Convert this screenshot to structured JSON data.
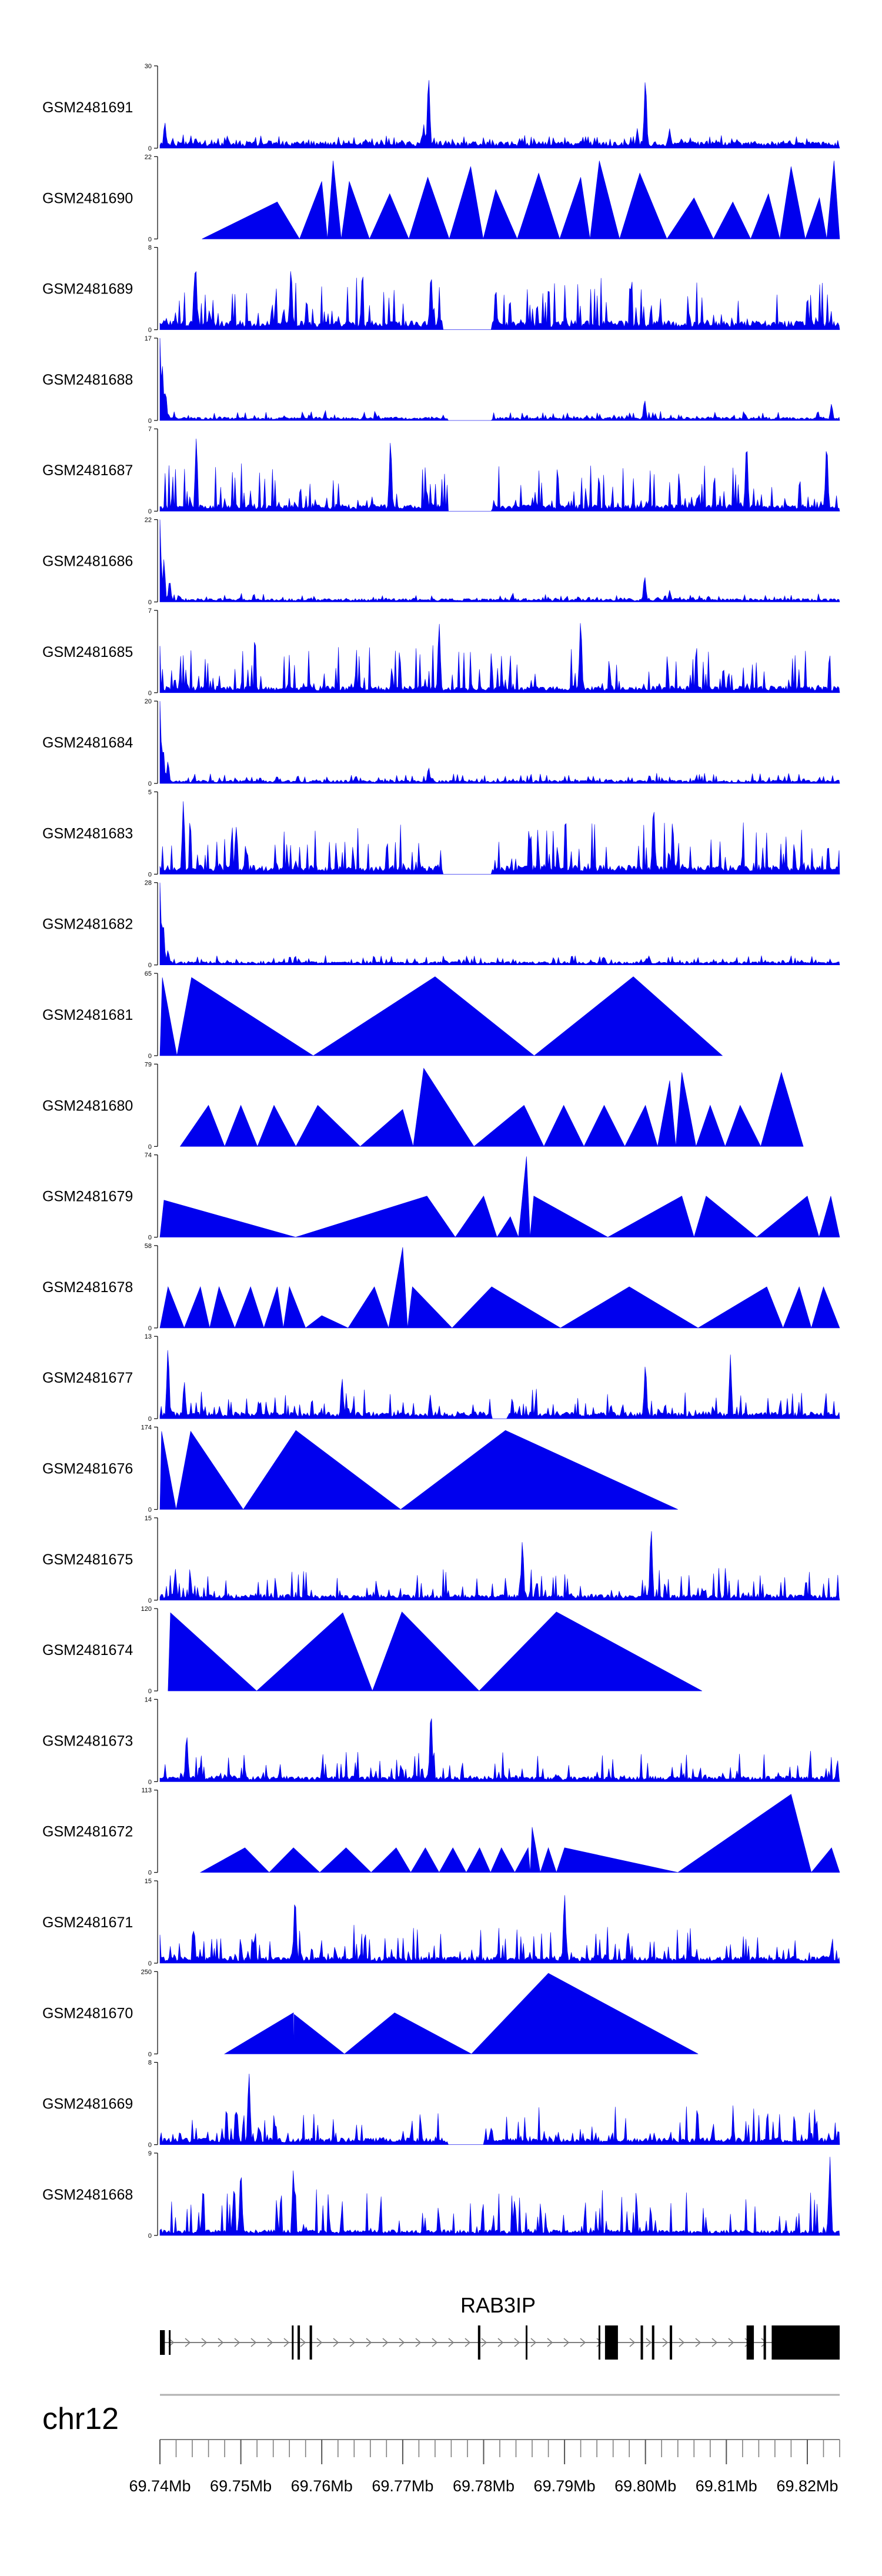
{
  "chart_data": {
    "type": "area",
    "chromosome": "chr12",
    "gene": {
      "name": "RAB3IP",
      "strand": "+",
      "start_mb": 69.74,
      "end_mb": 69.824,
      "exons_mb": [
        [
          69.74,
          69.7406
        ],
        [
          69.7411,
          69.7413
        ],
        [
          69.7563,
          69.7565
        ],
        [
          69.757,
          69.7573
        ],
        [
          69.7585,
          69.7588
        ],
        [
          69.7793,
          69.7796
        ],
        [
          69.7852,
          69.7854
        ],
        [
          69.7942,
          69.7944
        ],
        [
          69.795,
          69.7966
        ],
        [
          69.7994,
          69.7997
        ],
        [
          69.8008,
          69.8011
        ],
        [
          69.803,
          69.8033
        ],
        [
          69.8125,
          69.8134
        ],
        [
          69.8146,
          69.8149
        ],
        [
          69.8156,
          69.824
        ]
      ]
    },
    "xlim": [
      69.74,
      69.824
    ],
    "x_ticks": [
      {
        "value": 69.74,
        "label": "69.74Mb"
      },
      {
        "value": 69.75,
        "label": "69.75Mb"
      },
      {
        "value": 69.76,
        "label": "69.76Mb"
      },
      {
        "value": 69.77,
        "label": "69.77Mb"
      },
      {
        "value": 69.78,
        "label": "69.78Mb"
      },
      {
        "value": 69.79,
        "label": "69.79Mb"
      },
      {
        "value": 69.8,
        "label": "69.80Mb"
      },
      {
        "value": 69.81,
        "label": "69.81Mb"
      },
      {
        "value": 69.82,
        "label": "69.82Mb"
      }
    ],
    "minor_tick_step_mb": 0.002,
    "fill_color": "#0000ee",
    "series": [
      {
        "name": "GSM2481691",
        "ymax": 30,
        "ytick_top": "30",
        "ytick_bottom": "0",
        "style": "dense",
        "base": 0.06,
        "noise": 0.1,
        "peaks": [
          [
            69.7406,
            0.35
          ],
          [
            69.7444,
            0.15
          ],
          [
            69.7535,
            0.12
          ],
          [
            69.7732,
            0.98
          ],
          [
            69.7726,
            0.3
          ],
          [
            69.799,
            0.25
          ],
          [
            69.8,
            0.95
          ],
          [
            69.803,
            0.25
          ]
        ]
      },
      {
        "name": "GSM2481690",
        "ymax": 22,
        "ytick_top": "22",
        "ytick_bottom": "0",
        "style": "sparse",
        "start": 69.7452,
        "end": 69.824,
        "peaks": [
          [
            69.7545,
            0.45
          ],
          [
            69.76,
            0.7
          ],
          [
            69.7614,
            0.95
          ],
          [
            69.7634,
            0.7
          ],
          [
            69.7684,
            0.55
          ],
          [
            69.7731,
            0.75
          ],
          [
            69.7784,
            0.88
          ],
          [
            69.7815,
            0.6
          ],
          [
            69.7868,
            0.8
          ],
          [
            69.792,
            0.75
          ],
          [
            69.7943,
            0.95
          ],
          [
            69.7993,
            0.8
          ],
          [
            69.806,
            0.5
          ],
          [
            69.8108,
            0.45
          ],
          [
            69.8152,
            0.55
          ],
          [
            69.818,
            0.88
          ],
          [
            69.8215,
            0.5
          ],
          [
            69.8233,
            0.95
          ]
        ]
      },
      {
        "name": "GSM2481689",
        "ymax": 8,
        "ytick_top": "8",
        "ytick_bottom": "0",
        "style": "dense",
        "base": 0.08,
        "noise": 0.55,
        "gaps": [
          [
            69.775,
            69.781
          ]
        ],
        "peaks": [
          [
            69.7444,
            0.92
          ],
          [
            69.7562,
            0.85
          ],
          [
            69.7735,
            0.78
          ]
        ]
      },
      {
        "name": "GSM2481688",
        "ymax": 17,
        "ytick_top": "17",
        "ytick_bottom": "0",
        "style": "dense",
        "base": 0.03,
        "noise": 0.08,
        "gaps": [
          [
            69.7755,
            69.781
          ]
        ],
        "peaks": [
          [
            69.74,
            1.0
          ],
          [
            69.7403,
            0.7
          ],
          [
            69.7407,
            0.4
          ],
          [
            69.7999,
            0.28
          ],
          [
            69.823,
            0.22
          ]
        ]
      },
      {
        "name": "GSM2481687",
        "ymax": 7,
        "ytick_top": "7",
        "ytick_bottom": "0",
        "style": "dense",
        "base": 0.06,
        "noise": 0.5,
        "gaps": [
          [
            69.7755,
            69.781
          ]
        ],
        "peaks": [
          [
            69.7445,
            0.95
          ],
          [
            69.7685,
            0.96
          ],
          [
            69.8125,
            0.95
          ],
          [
            69.8224,
            0.93
          ]
        ]
      },
      {
        "name": "GSM2481686",
        "ymax": 22,
        "ytick_top": "22",
        "ytick_bottom": "0",
        "style": "dense",
        "base": 0.03,
        "noise": 0.07,
        "peaks": [
          [
            69.74,
            1.0
          ],
          [
            69.7405,
            0.55
          ],
          [
            69.7412,
            0.3
          ],
          [
            69.7999,
            0.35
          ],
          [
            69.803,
            0.15
          ]
        ]
      },
      {
        "name": "GSM2481685",
        "ymax": 7,
        "ytick_top": "7",
        "ytick_bottom": "0",
        "style": "dense",
        "base": 0.06,
        "noise": 0.55,
        "peaks": [
          [
            69.7745,
            0.92
          ],
          [
            69.792,
            0.98
          ]
        ]
      },
      {
        "name": "GSM2481684",
        "ymax": 20,
        "ytick_top": "20",
        "ytick_bottom": "0",
        "style": "dense",
        "base": 0.03,
        "noise": 0.1,
        "peaks": [
          [
            69.74,
            1.0
          ],
          [
            69.7404,
            0.5
          ],
          [
            69.741,
            0.3
          ],
          [
            69.7732,
            0.22
          ],
          [
            69.8005,
            0.12
          ]
        ]
      },
      {
        "name": "GSM2481683",
        "ymax": 5,
        "ytick_top": "5",
        "ytick_bottom": "0",
        "style": "dense",
        "base": 0.08,
        "noise": 0.55,
        "gaps": [
          [
            69.775,
            69.781
          ]
        ],
        "peaks": [
          [
            69.7429,
            0.95
          ],
          [
            69.801,
            0.95
          ]
        ]
      },
      {
        "name": "GSM2481682",
        "ymax": 28,
        "ytick_top": "28",
        "ytick_bottom": "0",
        "style": "dense",
        "base": 0.03,
        "noise": 0.08,
        "peaks": [
          [
            69.74,
            1.0
          ],
          [
            69.7404,
            0.6
          ],
          [
            69.741,
            0.2
          ],
          [
            69.8004,
            0.12
          ]
        ]
      },
      {
        "name": "GSM2481681",
        "ymax": 65,
        "ytick_top": "65",
        "ytick_bottom": "0",
        "style": "sparse",
        "start": 69.74,
        "end": 69.8095,
        "peaks": [
          [
            69.7403,
            0.95
          ],
          [
            69.7439,
            0.95
          ],
          [
            69.774,
            0.96
          ],
          [
            69.7985,
            0.96
          ]
        ]
      },
      {
        "name": "GSM2481680",
        "ymax": 79,
        "ytick_top": "79",
        "ytick_bottom": "0",
        "style": "sparse",
        "start": 69.7425,
        "end": 69.8195,
        "peaks": [
          [
            69.746,
            0.5
          ],
          [
            69.75,
            0.5
          ],
          [
            69.7541,
            0.5
          ],
          [
            69.7595,
            0.5
          ],
          [
            69.77,
            0.45
          ],
          [
            69.7726,
            0.95
          ],
          [
            69.785,
            0.5
          ],
          [
            69.7899,
            0.5
          ],
          [
            69.7949,
            0.5
          ],
          [
            69.8,
            0.5
          ],
          [
            69.803,
            0.8
          ],
          [
            69.8045,
            0.9
          ],
          [
            69.808,
            0.5
          ],
          [
            69.8117,
            0.5
          ],
          [
            69.8168,
            0.9
          ]
        ]
      },
      {
        "name": "GSM2481679",
        "ymax": 74,
        "ytick_top": "74",
        "ytick_bottom": "0",
        "style": "sparse",
        "start": 69.74,
        "end": 69.824,
        "peaks": [
          [
            69.7405,
            0.45
          ],
          [
            69.773,
            0.5
          ],
          [
            69.78,
            0.5
          ],
          [
            69.7833,
            0.25
          ],
          [
            69.7853,
            0.98
          ],
          [
            69.7862,
            0.5
          ],
          [
            69.8045,
            0.5
          ],
          [
            69.8075,
            0.5
          ],
          [
            69.82,
            0.5
          ],
          [
            69.8229,
            0.5
          ]
        ]
      },
      {
        "name": "GSM2481678",
        "ymax": 58,
        "ytick_top": "58",
        "ytick_bottom": "0",
        "style": "sparse",
        "start": 69.74,
        "end": 69.824,
        "peaks": [
          [
            69.741,
            0.5
          ],
          [
            69.745,
            0.5
          ],
          [
            69.7473,
            0.5
          ],
          [
            69.7512,
            0.5
          ],
          [
            69.7545,
            0.5
          ],
          [
            69.756,
            0.5
          ],
          [
            69.76,
            0.15
          ],
          [
            69.7665,
            0.5
          ],
          [
            69.77,
            0.98
          ],
          [
            69.7712,
            0.5
          ],
          [
            69.781,
            0.5
          ],
          [
            69.798,
            0.5
          ],
          [
            69.815,
            0.5
          ],
          [
            69.819,
            0.5
          ],
          [
            69.822,
            0.5
          ]
        ]
      },
      {
        "name": "GSM2481677",
        "ymax": 13,
        "ytick_top": "13",
        "ytick_bottom": "0",
        "style": "dense",
        "base": 0.06,
        "noise": 0.3,
        "gaps": [
          [
            69.781,
            69.783
          ]
        ],
        "peaks": [
          [
            69.741,
            0.95
          ],
          [
            69.743,
            0.5
          ],
          [
            69.7625,
            0.55
          ],
          [
            69.7734,
            0.3
          ],
          [
            69.8,
            0.75
          ],
          [
            69.8105,
            0.78
          ]
        ]
      },
      {
        "name": "GSM2481676",
        "ymax": 174,
        "ytick_top": "174",
        "ytick_bottom": "0",
        "style": "sparse",
        "start": 69.74,
        "end": 69.804,
        "peaks": [
          [
            69.7402,
            0.95
          ],
          [
            69.7438,
            0.95
          ],
          [
            69.7568,
            0.96
          ],
          [
            69.7827,
            0.96
          ]
        ]
      },
      {
        "name": "GSM2481675",
        "ymax": 15,
        "ytick_top": "15",
        "ytick_bottom": "0",
        "style": "dense",
        "base": 0.05,
        "noise": 0.35,
        "peaks": [
          [
            69.7419,
            0.4
          ],
          [
            69.7848,
            0.8
          ],
          [
            69.8007,
            0.98
          ]
        ]
      },
      {
        "name": "GSM2481674",
        "ymax": 120,
        "ytick_top": "120",
        "ytick_bottom": "0",
        "style": "sparse",
        "start": 69.741,
        "end": 69.807,
        "peaks": [
          [
            69.7413,
            0.95
          ],
          [
            69.7626,
            0.95
          ],
          [
            69.7699,
            0.96
          ],
          [
            69.789,
            0.96
          ]
        ]
      },
      {
        "name": "GSM2481673",
        "ymax": 14,
        "ytick_top": "14",
        "ytick_bottom": "0",
        "style": "dense",
        "base": 0.05,
        "noise": 0.35,
        "peaks": [
          [
            69.7433,
            0.65
          ],
          [
            69.7735,
            0.98
          ]
        ]
      },
      {
        "name": "GSM2481672",
        "ymax": 113,
        "ytick_top": "113",
        "ytick_bottom": "0",
        "style": "sparse",
        "start": 69.745,
        "end": 69.824,
        "peaks": [
          [
            69.7505,
            0.3
          ],
          [
            69.7565,
            0.3
          ],
          [
            69.763,
            0.3
          ],
          [
            69.7692,
            0.3
          ],
          [
            69.7728,
            0.3
          ],
          [
            69.7762,
            0.3
          ],
          [
            69.7795,
            0.3
          ],
          [
            69.7822,
            0.3
          ],
          [
            69.7855,
            0.3
          ],
          [
            69.786,
            0.55
          ],
          [
            69.788,
            0.3
          ],
          [
            69.79,
            0.3
          ],
          [
            69.818,
            0.95
          ],
          [
            69.823,
            0.3
          ]
        ]
      },
      {
        "name": "GSM2481671",
        "ymax": 15,
        "ytick_top": "15",
        "ytick_bottom": "0",
        "style": "dense",
        "base": 0.06,
        "noise": 0.4,
        "peaks": [
          [
            69.7567,
            0.92
          ],
          [
            69.79,
            0.93
          ]
        ]
      },
      {
        "name": "GSM2481670",
        "ymax": 250,
        "ytick_top": "250",
        "ytick_bottom": "0",
        "style": "sparse",
        "start": 69.748,
        "end": 69.8065,
        "peaks": [
          [
            69.7565,
            0.5
          ],
          [
            69.7566,
            0.48
          ],
          [
            69.769,
            0.5
          ],
          [
            69.788,
            0.98
          ]
        ]
      },
      {
        "name": "GSM2481669",
        "ymax": 8,
        "ytick_top": "8",
        "ytick_bottom": "0",
        "style": "dense",
        "base": 0.06,
        "noise": 0.4,
        "gaps": [
          [
            69.7755,
            69.78
          ]
        ],
        "peaks": [
          [
            69.751,
            0.95
          ],
          [
            69.7495,
            0.5
          ]
        ]
      },
      {
        "name": "GSM2481668",
        "ymax": 9,
        "ytick_top": "9",
        "ytick_bottom": "0",
        "style": "dense",
        "base": 0.05,
        "noise": 0.5,
        "peaks": [
          [
            69.75,
            0.9
          ],
          [
            69.7565,
            0.88
          ],
          [
            69.8228,
            0.98
          ]
        ]
      }
    ]
  }
}
